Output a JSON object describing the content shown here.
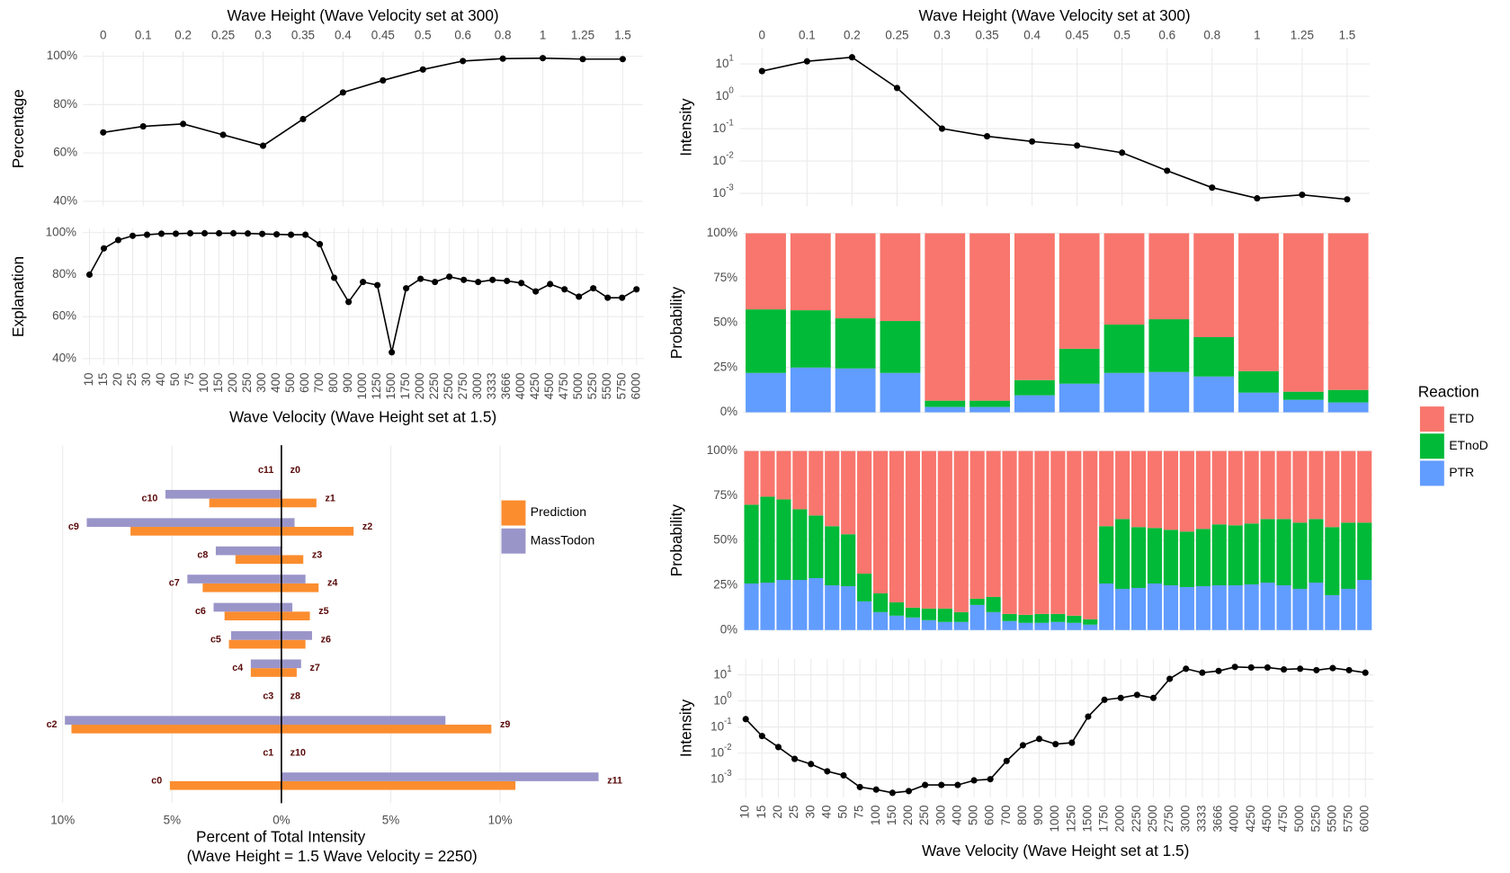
{
  "chart_data": [
    {
      "type": "line",
      "title": "Wave Height (Wave Velocity set at 300)",
      "ylabel": "Percentage",
      "x_axis": "top",
      "categories": [
        "0",
        "0.1",
        "0.2",
        "0.25",
        "0.3",
        "0.35",
        "0.4",
        "0.45",
        "0.5",
        "0.6",
        "0.8",
        "1",
        "1.25",
        "1.5"
      ],
      "values": [
        68.5,
        71,
        72,
        67.5,
        63,
        74,
        85,
        90,
        94.5,
        98,
        99,
        99.2,
        98.8,
        98.8
      ],
      "color": "#000000",
      "ylim": [
        38,
        102
      ],
      "yticks": [
        {
          "value": 40,
          "label": "40%"
        },
        {
          "value": 60,
          "label": "60%"
        },
        {
          "value": 80,
          "label": "80%"
        },
        {
          "value": 100,
          "label": "100%"
        }
      ],
      "grid": true
    },
    {
      "type": "line",
      "title": "Wave Height (Wave Velocity set at 300)",
      "ylabel": "Intensity",
      "x_axis": "top",
      "log_scale": true,
      "categories": [
        "0",
        "0.1",
        "0.2",
        "0.25",
        "0.3",
        "0.35",
        "0.4",
        "0.45",
        "0.5",
        "0.6",
        "0.8",
        "1",
        "1.25",
        "1.5"
      ],
      "values": [
        6,
        12,
        16,
        1.8,
        0.1,
        0.058,
        0.04,
        0.03,
        0.018,
        0.005,
        0.0015,
        0.0007,
        0.0009,
        0.00065
      ],
      "color": "#000000",
      "ylim": [
        0.0004,
        30
      ],
      "yticks": [
        {
          "value": 0.001,
          "label": "10^-3"
        },
        {
          "value": 0.01,
          "label": "10^-2"
        },
        {
          "value": 0.1,
          "label": "10^-1"
        },
        {
          "value": 1,
          "label": "10^0"
        },
        {
          "value": 10,
          "label": "10^1"
        }
      ],
      "grid": true
    },
    {
      "type": "line",
      "xlabel": "Wave Velocity (Wave Height set at 1.5)",
      "ylabel": "Explanation",
      "x_axis": "bottom",
      "categories": [
        "10",
        "15",
        "20",
        "25",
        "30",
        "40",
        "50",
        "75",
        "100",
        "150",
        "200",
        "250",
        "300",
        "400",
        "500",
        "600",
        "700",
        "800",
        "900",
        "1000",
        "1250",
        "1500",
        "1750",
        "2000",
        "2250",
        "2500",
        "2750",
        "3000",
        "3333",
        "3666",
        "4000",
        "4250",
        "4500",
        "4750",
        "5000",
        "5250",
        "5500",
        "5750",
        "6000"
      ],
      "values": [
        80,
        92.5,
        96.5,
        98.5,
        99,
        99.5,
        99.5,
        99.7,
        99.7,
        99.7,
        99.7,
        99.6,
        99.4,
        99.2,
        99,
        99,
        94.5,
        78.5,
        67,
        76.5,
        75,
        43,
        73.5,
        78,
        76.5,
        79,
        77.5,
        76.5,
        77.5,
        77,
        76,
        72,
        75.5,
        73,
        69.5,
        73.5,
        69,
        69,
        73
      ],
      "color": "#000000",
      "ylim": [
        37,
        102
      ],
      "yticks": [
        {
          "value": 40,
          "label": "40%"
        },
        {
          "value": 60,
          "label": "60%"
        },
        {
          "value": 80,
          "label": "80%"
        },
        {
          "value": 100,
          "label": "100%"
        }
      ],
      "grid": true
    },
    {
      "type": "stacked_bar",
      "ylabel": "Probability",
      "legend_title": "Reaction",
      "legend": "right",
      "series": [
        {
          "name": "ETD",
          "color": "#f8766d",
          "values": [
            42.5,
            43,
            47.5,
            49,
            93.5,
            93.5,
            82,
            64.5,
            51,
            48,
            58,
            77,
            88.5,
            87.5
          ]
        },
        {
          "name": "ETnoD",
          "color": "#00ba38",
          "values": [
            35.5,
            32,
            28,
            29,
            3.5,
            3.5,
            8.5,
            19.5,
            27,
            29.5,
            22,
            12,
            4.5,
            7
          ]
        },
        {
          "name": "PTR",
          "color": "#619cff",
          "values": [
            22,
            25,
            24.5,
            22,
            3,
            3,
            9.5,
            16,
            22,
            22.5,
            20,
            11,
            7,
            5.5
          ]
        }
      ],
      "ylim": [
        0,
        100
      ],
      "yticks": [
        {
          "value": 0,
          "label": "0%"
        },
        {
          "value": 25,
          "label": "25%"
        },
        {
          "value": 50,
          "label": "50%"
        },
        {
          "value": 75,
          "label": "75%"
        },
        {
          "value": 100,
          "label": "100%"
        }
      ],
      "grid": true
    },
    {
      "type": "stacked_bar",
      "ylabel": "Probability",
      "series": [
        {
          "name": "ETD",
          "color": "#f8766d",
          "values": [
            30,
            25.5,
            27,
            32.5,
            36,
            42,
            46.5,
            68.5,
            79.5,
            84.5,
            87.5,
            88,
            88,
            90,
            82.5,
            81.5,
            91,
            91.5,
            91,
            91,
            92,
            94,
            42,
            38,
            42.5,
            43,
            44,
            45,
            43.5,
            41,
            41.5,
            40.5,
            38,
            38,
            40,
            38,
            42.5,
            40,
            40
          ]
        },
        {
          "name": "ETnoD",
          "color": "#00ba38",
          "values": [
            44,
            48,
            45,
            39.5,
            35,
            33,
            29,
            15.5,
            10.5,
            7.5,
            5.5,
            6.5,
            7.5,
            5.5,
            3.5,
            8.5,
            4,
            4.5,
            5,
            4.5,
            4,
            3,
            32,
            39,
            34,
            31,
            31,
            31,
            32,
            34,
            33.5,
            34,
            35.5,
            37,
            37,
            35.5,
            38,
            37,
            32
          ]
        },
        {
          "name": "PTR",
          "color": "#619cff",
          "values": [
            26,
            26.5,
            28,
            28,
            29,
            25,
            24.5,
            16,
            10,
            8,
            7,
            5.5,
            4.5,
            4.5,
            14,
            10,
            5,
            4,
            4,
            4.5,
            4,
            3,
            26,
            23,
            23.5,
            26,
            25,
            24,
            24.5,
            25,
            25,
            25.5,
            26.5,
            25,
            23,
            26.5,
            19.5,
            23,
            28
          ]
        }
      ],
      "ylim": [
        0,
        100
      ],
      "yticks": [
        {
          "value": 0,
          "label": "0%"
        },
        {
          "value": 25,
          "label": "25%"
        },
        {
          "value": 50,
          "label": "50%"
        },
        {
          "value": 75,
          "label": "75%"
        },
        {
          "value": 100,
          "label": "100%"
        }
      ],
      "grid": true
    },
    {
      "type": "line",
      "xlabel": "Wave Velocity (Wave Height set at 1.5)",
      "ylabel": "Intensity",
      "x_axis": "bottom",
      "log_scale": true,
      "categories": [
        "10",
        "15",
        "20",
        "25",
        "30",
        "40",
        "50",
        "75",
        "100",
        "150",
        "200",
        "250",
        "300",
        "400",
        "500",
        "600",
        "700",
        "800",
        "900",
        "1000",
        "1250",
        "1500",
        "1750",
        "2000",
        "2250",
        "2500",
        "2750",
        "3000",
        "3333",
        "3666",
        "4000",
        "4250",
        "4500",
        "4750",
        "5000",
        "5250",
        "5500",
        "5750",
        "6000"
      ],
      "values": [
        0.2,
        0.045,
        0.017,
        0.006,
        0.0038,
        0.002,
        0.0014,
        0.0005,
        0.0004,
        0.0003,
        0.00035,
        0.0006,
        0.0006,
        0.0006,
        0.0009,
        0.001,
        0.005,
        0.02,
        0.035,
        0.022,
        0.025,
        0.25,
        1.1,
        1.3,
        1.7,
        1.3,
        7,
        17,
        12,
        14,
        20,
        19,
        19,
        16,
        17,
        15,
        18,
        15,
        12
      ],
      "color": "#000000",
      "ylim": [
        0.0002,
        40
      ],
      "yticks": [
        {
          "value": 0.001,
          "label": "10^-3"
        },
        {
          "value": 0.01,
          "label": "10^-2"
        },
        {
          "value": 0.1,
          "label": "10^-1"
        },
        {
          "value": 1,
          "label": "10^0"
        },
        {
          "value": 10,
          "label": "10^1"
        }
      ],
      "grid": true
    },
    {
      "type": "butterfly",
      "xlabel": "Percent of Total Intensity",
      "xlabel_note": "(Wave Height = 1.5 Wave Velocity = 2250)",
      "legend": "right",
      "c_labels": [
        "c11",
        "c10",
        "c9",
        "c8",
        "c7",
        "c6",
        "c5",
        "c4",
        "c3",
        "c2",
        "c1",
        "c0"
      ],
      "z_labels": [
        "z0",
        "z1",
        "z2",
        "z3",
        "z4",
        "z5",
        "z6",
        "z7",
        "z8",
        "z9",
        "z10",
        "z11"
      ],
      "series": [
        {
          "name": "Prediction",
          "color": "#fb8d2e",
          "c_values": [
            0,
            -3.3,
            -6.9,
            -2.1,
            -3.6,
            -2.6,
            -2.4,
            -1.4,
            0,
            -9.6,
            0,
            -5.1
          ],
          "z_values": [
            0,
            1.6,
            3.3,
            1.0,
            1.7,
            1.3,
            1.1,
            0.7,
            0,
            9.6,
            0,
            10.7
          ]
        },
        {
          "name": "MassTodon",
          "color": "#9a95c9",
          "c_values": [
            0,
            -5.3,
            -8.9,
            -3.0,
            -4.3,
            -3.1,
            -2.3,
            -1.4,
            0,
            -9.9,
            0,
            0
          ],
          "z_values": [
            0,
            0,
            0.6,
            0,
            1.1,
            0.5,
            1.4,
            0.9,
            0,
            7.5,
            0,
            14.5
          ]
        }
      ],
      "xlim": [
        -10.3,
        15.9
      ],
      "xticks": [
        {
          "value": -10,
          "label": "10%"
        },
        {
          "value": -5,
          "label": "5%"
        },
        {
          "value": 0,
          "label": "0%"
        },
        {
          "value": 5,
          "label": "5%"
        },
        {
          "value": 10,
          "label": "10%"
        }
      ],
      "grid": true
    }
  ]
}
